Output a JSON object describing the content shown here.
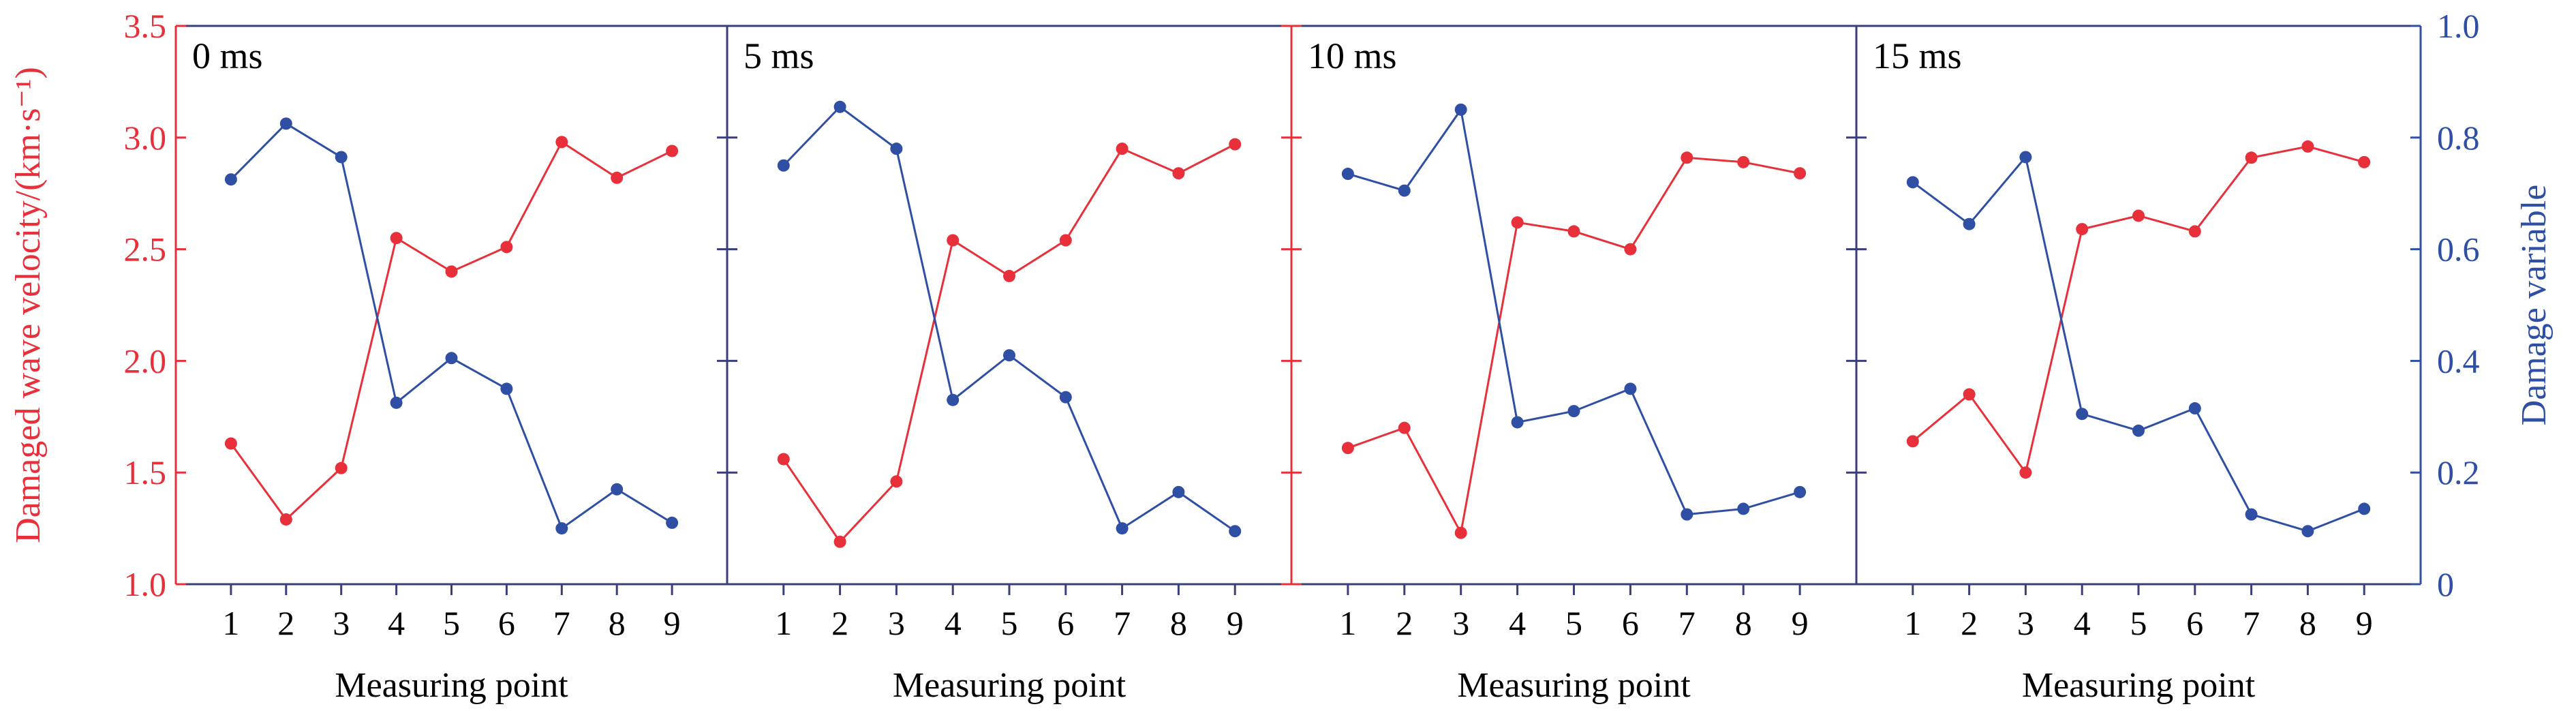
{
  "chart_data": {
    "type": "line",
    "categories": [
      "1",
      "2",
      "3",
      "4",
      "5",
      "6",
      "7",
      "8",
      "9"
    ],
    "xlabel": "Measuring point",
    "ylabel_left": "Damaged wave velocity/(km·s⁻¹)",
    "ylabel_right": "Damage variable",
    "ylim_left": [
      1.0,
      3.5
    ],
    "yticks_left": [
      "1.0",
      "1.5",
      "2.0",
      "2.5",
      "3.0",
      "3.5"
    ],
    "ylim_right": [
      0,
      1.0
    ],
    "yticks_right": [
      "0",
      "0.2",
      "0.4",
      "0.6",
      "0.8",
      "1.0"
    ],
    "colors": {
      "velocity": "#e8303a",
      "damage": "#2e4fa3",
      "frame": "#3a3f7a"
    },
    "panels": [
      {
        "label": "0 ms",
        "velocity": [
          1.63,
          1.29,
          1.52,
          2.55,
          2.4,
          2.51,
          2.98,
          2.82,
          2.94
        ],
        "damage": [
          0.725,
          0.825,
          0.765,
          0.325,
          0.405,
          0.35,
          0.1,
          0.17,
          0.11
        ]
      },
      {
        "label": "5 ms",
        "velocity": [
          1.56,
          1.19,
          1.46,
          2.54,
          2.38,
          2.54,
          2.95,
          2.84,
          2.97
        ],
        "damage": [
          0.75,
          0.855,
          0.78,
          0.33,
          0.41,
          0.335,
          0.1,
          0.165,
          0.095
        ]
      },
      {
        "label": "10 ms",
        "velocity": [
          1.61,
          1.7,
          1.23,
          2.62,
          2.58,
          2.5,
          2.91,
          2.89,
          2.84
        ],
        "damage": [
          0.735,
          0.705,
          0.85,
          0.29,
          0.31,
          0.35,
          0.125,
          0.135,
          0.165
        ]
      },
      {
        "label": "15 ms",
        "velocity": [
          1.64,
          1.85,
          1.5,
          2.59,
          2.65,
          2.58,
          2.91,
          2.96,
          2.89
        ],
        "damage": [
          0.72,
          0.645,
          0.765,
          0.305,
          0.275,
          0.315,
          0.125,
          0.095,
          0.135
        ]
      }
    ]
  }
}
